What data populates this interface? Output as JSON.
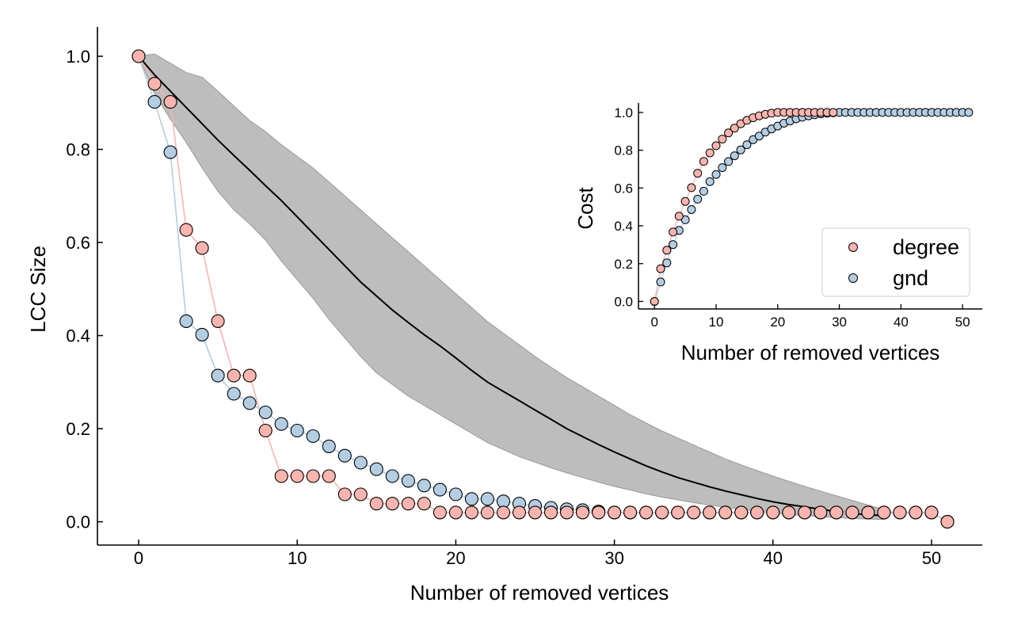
{
  "colors": {
    "degree": "#fbb4ae",
    "gnd": "#b3cde3",
    "band": "#bdbdbd",
    "band_edge": "#999999",
    "mean_line": "#000000"
  },
  "chart_data": [
    {
      "id": "main",
      "type": "line",
      "xlabel": "Number of removed vertices",
      "ylabel": "LCC Size",
      "xlim": [
        -2.6,
        53.2
      ],
      "ylim": [
        -0.05,
        1.063
      ],
      "xticks": [
        "0",
        "10",
        "20",
        "30",
        "40",
        "50"
      ],
      "yticks": [
        "0.0",
        "0.2",
        "0.4",
        "0.6",
        "0.8",
        "1.0"
      ],
      "grid": false,
      "x": [
        0,
        1,
        2,
        3,
        4,
        5,
        6,
        7,
        8,
        9,
        10,
        11,
        12,
        13,
        14,
        15,
        16,
        17,
        18,
        19,
        20,
        21,
        22,
        23,
        24,
        25,
        26,
        27,
        28,
        29,
        30,
        31,
        32,
        33,
        34,
        35,
        36,
        37,
        38,
        39,
        40,
        41,
        42,
        43,
        44,
        45,
        46,
        47,
        48,
        49,
        50,
        51
      ],
      "series": [
        {
          "key": "degree",
          "name": "degree",
          "values": [
            1.0,
            0.941,
            0.902,
            0.627,
            0.588,
            0.431,
            0.314,
            0.314,
            0.196,
            0.098,
            0.098,
            0.098,
            0.098,
            0.059,
            0.059,
            0.039,
            0.039,
            0.039,
            0.039,
            0.02,
            0.02,
            0.02,
            0.02,
            0.02,
            0.02,
            0.02,
            0.02,
            0.02,
            0.02,
            0.02,
            0.02,
            0.02,
            0.02,
            0.02,
            0.02,
            0.02,
            0.02,
            0.02,
            0.02,
            0.02,
            0.02,
            0.02,
            0.02,
            0.02,
            0.02,
            0.02,
            0.02,
            0.02,
            0.02,
            0.02,
            0.02,
            0.0
          ]
        },
        {
          "key": "gnd",
          "name": "gnd",
          "values": [
            1.0,
            0.902,
            0.794,
            0.431,
            0.402,
            0.314,
            0.275,
            0.255,
            0.235,
            0.21,
            0.196,
            0.184,
            0.162,
            0.142,
            0.127,
            0.113,
            0.098,
            0.088,
            0.078,
            0.069,
            0.059,
            0.049,
            0.049,
            0.044,
            0.039,
            0.034,
            0.03,
            0.027,
            0.025,
            0.022,
            0.02,
            0.02,
            0.02,
            0.02,
            0.02,
            0.02,
            0.02,
            0.02,
            0.02,
            0.02,
            0.02,
            0.02,
            0.02,
            0.02,
            0.02,
            0.02,
            0.02,
            0.02,
            0.02,
            0.02,
            0.02,
            0.0
          ]
        }
      ],
      "band": {
        "x": [
          0,
          1,
          2,
          3,
          4,
          5,
          6,
          7,
          8,
          9,
          10,
          11,
          12,
          13,
          14,
          15,
          16,
          17,
          18,
          19,
          20,
          21,
          22,
          23,
          24,
          25,
          26,
          27,
          28,
          29,
          30,
          31,
          32,
          33,
          34,
          35,
          36,
          37,
          38,
          39,
          40,
          41,
          42,
          43,
          44,
          45,
          46,
          47
        ],
        "mean": [
          1.0,
          0.96,
          0.925,
          0.89,
          0.855,
          0.82,
          0.787,
          0.755,
          0.722,
          0.69,
          0.655,
          0.62,
          0.585,
          0.55,
          0.515,
          0.485,
          0.455,
          0.428,
          0.402,
          0.378,
          0.352,
          0.325,
          0.3,
          0.28,
          0.26,
          0.24,
          0.22,
          0.2,
          0.183,
          0.166,
          0.15,
          0.135,
          0.12,
          0.107,
          0.095,
          0.085,
          0.075,
          0.066,
          0.058,
          0.05,
          0.043,
          0.037,
          0.032,
          0.027,
          0.022,
          0.018,
          0.015,
          0.013
        ],
        "upper": [
          1.0,
          1.005,
          0.985,
          0.965,
          0.955,
          0.925,
          0.893,
          0.862,
          0.838,
          0.81,
          0.785,
          0.76,
          0.73,
          0.7,
          0.67,
          0.64,
          0.61,
          0.58,
          0.55,
          0.52,
          0.49,
          0.46,
          0.43,
          0.405,
          0.38,
          0.355,
          0.332,
          0.31,
          0.29,
          0.27,
          0.25,
          0.23,
          0.212,
          0.195,
          0.18,
          0.165,
          0.15,
          0.135,
          0.122,
          0.11,
          0.098,
          0.087,
          0.076,
          0.066,
          0.056,
          0.046,
          0.036,
          0.026
        ],
        "lower": [
          1.0,
          0.92,
          0.865,
          0.815,
          0.76,
          0.71,
          0.67,
          0.64,
          0.605,
          0.56,
          0.52,
          0.48,
          0.435,
          0.395,
          0.355,
          0.32,
          0.295,
          0.27,
          0.25,
          0.23,
          0.21,
          0.19,
          0.17,
          0.155,
          0.14,
          0.128,
          0.116,
          0.105,
          0.095,
          0.085,
          0.076,
          0.068,
          0.06,
          0.053,
          0.047,
          0.041,
          0.036,
          0.031,
          0.027,
          0.023,
          0.019,
          0.016,
          0.013,
          0.011,
          0.009,
          0.007,
          0.006,
          0.005
        ]
      }
    },
    {
      "id": "inset",
      "type": "scatter",
      "xlabel": "Number of removed vertices",
      "ylabel": "Cost",
      "xlim": [
        -2.6,
        53.2
      ],
      "ylim": [
        -0.04,
        1.05
      ],
      "xticks": [
        "0",
        "10",
        "20",
        "30",
        "40",
        "50"
      ],
      "yticks": [
        "0.0",
        "0.2",
        "0.4",
        "0.6",
        "0.8",
        "1.0"
      ],
      "grid": false,
      "legend": "lower-right",
      "x": [
        0,
        1,
        2,
        3,
        4,
        5,
        6,
        7,
        8,
        9,
        10,
        11,
        12,
        13,
        14,
        15,
        16,
        17,
        18,
        19,
        20,
        21,
        22,
        23,
        24,
        25,
        26,
        27,
        28,
        29,
        30,
        31,
        32,
        33,
        34,
        35,
        36,
        37,
        38,
        39,
        40,
        41,
        42,
        43,
        44,
        45,
        46,
        47,
        48,
        49,
        50,
        51
      ],
      "series": [
        {
          "key": "degree",
          "name": "degree",
          "values": [
            0.0,
            0.173,
            0.271,
            0.367,
            0.451,
            0.529,
            0.602,
            0.678,
            0.741,
            0.786,
            0.824,
            0.859,
            0.892,
            0.917,
            0.94,
            0.958,
            0.972,
            0.982,
            0.99,
            0.996,
            1.0,
            1.0,
            1.0,
            1.0,
            1.0,
            1.0,
            1.0,
            1.0,
            1.0,
            1.0,
            null,
            null,
            null,
            null,
            null,
            null,
            null,
            null,
            null,
            null,
            null,
            null,
            null,
            null,
            null,
            null,
            null,
            null,
            null,
            null,
            null,
            null
          ]
        },
        {
          "key": "gnd",
          "name": "gnd",
          "values": [
            0.0,
            0.103,
            0.204,
            0.301,
            0.376,
            0.432,
            0.486,
            0.541,
            0.583,
            0.634,
            0.672,
            0.708,
            0.74,
            0.771,
            0.802,
            0.829,
            0.856,
            0.875,
            0.896,
            0.913,
            0.928,
            0.943,
            0.955,
            0.966,
            0.975,
            0.982,
            0.988,
            0.993,
            0.996,
            0.998,
            1.0,
            1.0,
            1.0,
            1.0,
            1.0,
            1.0,
            1.0,
            1.0,
            1.0,
            1.0,
            1.0,
            1.0,
            1.0,
            1.0,
            1.0,
            1.0,
            1.0,
            1.0,
            1.0,
            1.0,
            1.0,
            1.0
          ]
        }
      ]
    }
  ]
}
